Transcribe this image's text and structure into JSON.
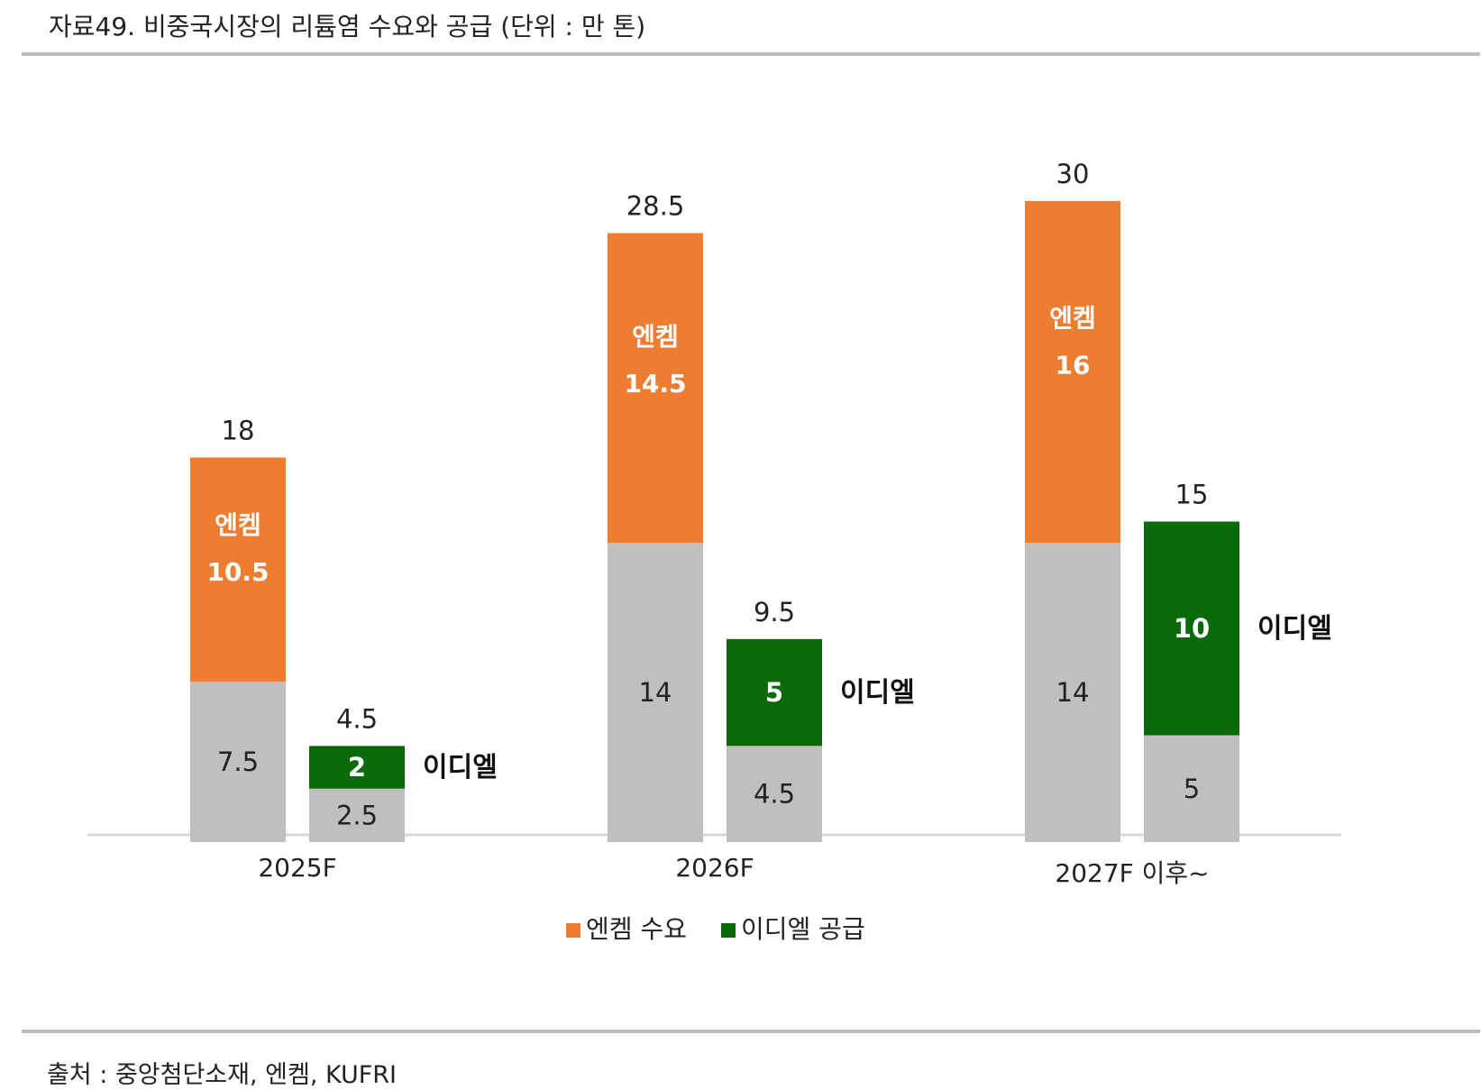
{
  "header": {
    "title": "자료49. 비중국시장의 리튬염 수요와 공급 (단위 : 만 톤)"
  },
  "footer": {
    "source": "출처 : 중앙첨단소재, 엔켐, KUFRI"
  },
  "colors": {
    "orange": "#ED7D31",
    "green": "#0A6A0A",
    "gray": "#BFBFBF",
    "axis": "#D9D9D9"
  },
  "chart_data": {
    "type": "bar",
    "stacked": true,
    "ylim": [
      0,
      31.5
    ],
    "categories": [
      "2025F",
      "2026F",
      "2027F 이후~"
    ],
    "series": [
      {
        "name": "엔켐 수요",
        "color": "#ED7D31",
        "base_values": [
          7.5,
          14,
          14
        ],
        "highlight_values": [
          10.5,
          14.5,
          16
        ],
        "totals": [
          18,
          28.5,
          30
        ],
        "highlight_label": "엔켐"
      },
      {
        "name": "이디엘 공급",
        "color": "#0A6A0A",
        "base_values": [
          2.5,
          4.5,
          5
        ],
        "highlight_values": [
          2,
          5,
          10
        ],
        "totals": [
          4.5,
          9.5,
          15
        ],
        "highlight_label": "이디엘"
      }
    ],
    "legend": [
      {
        "label": "엔켐 수요",
        "color": "#ED7D31"
      },
      {
        "label": "이디엘 공급",
        "color": "#0A6A0A"
      }
    ],
    "legend_position": "bottom",
    "grid": false
  }
}
